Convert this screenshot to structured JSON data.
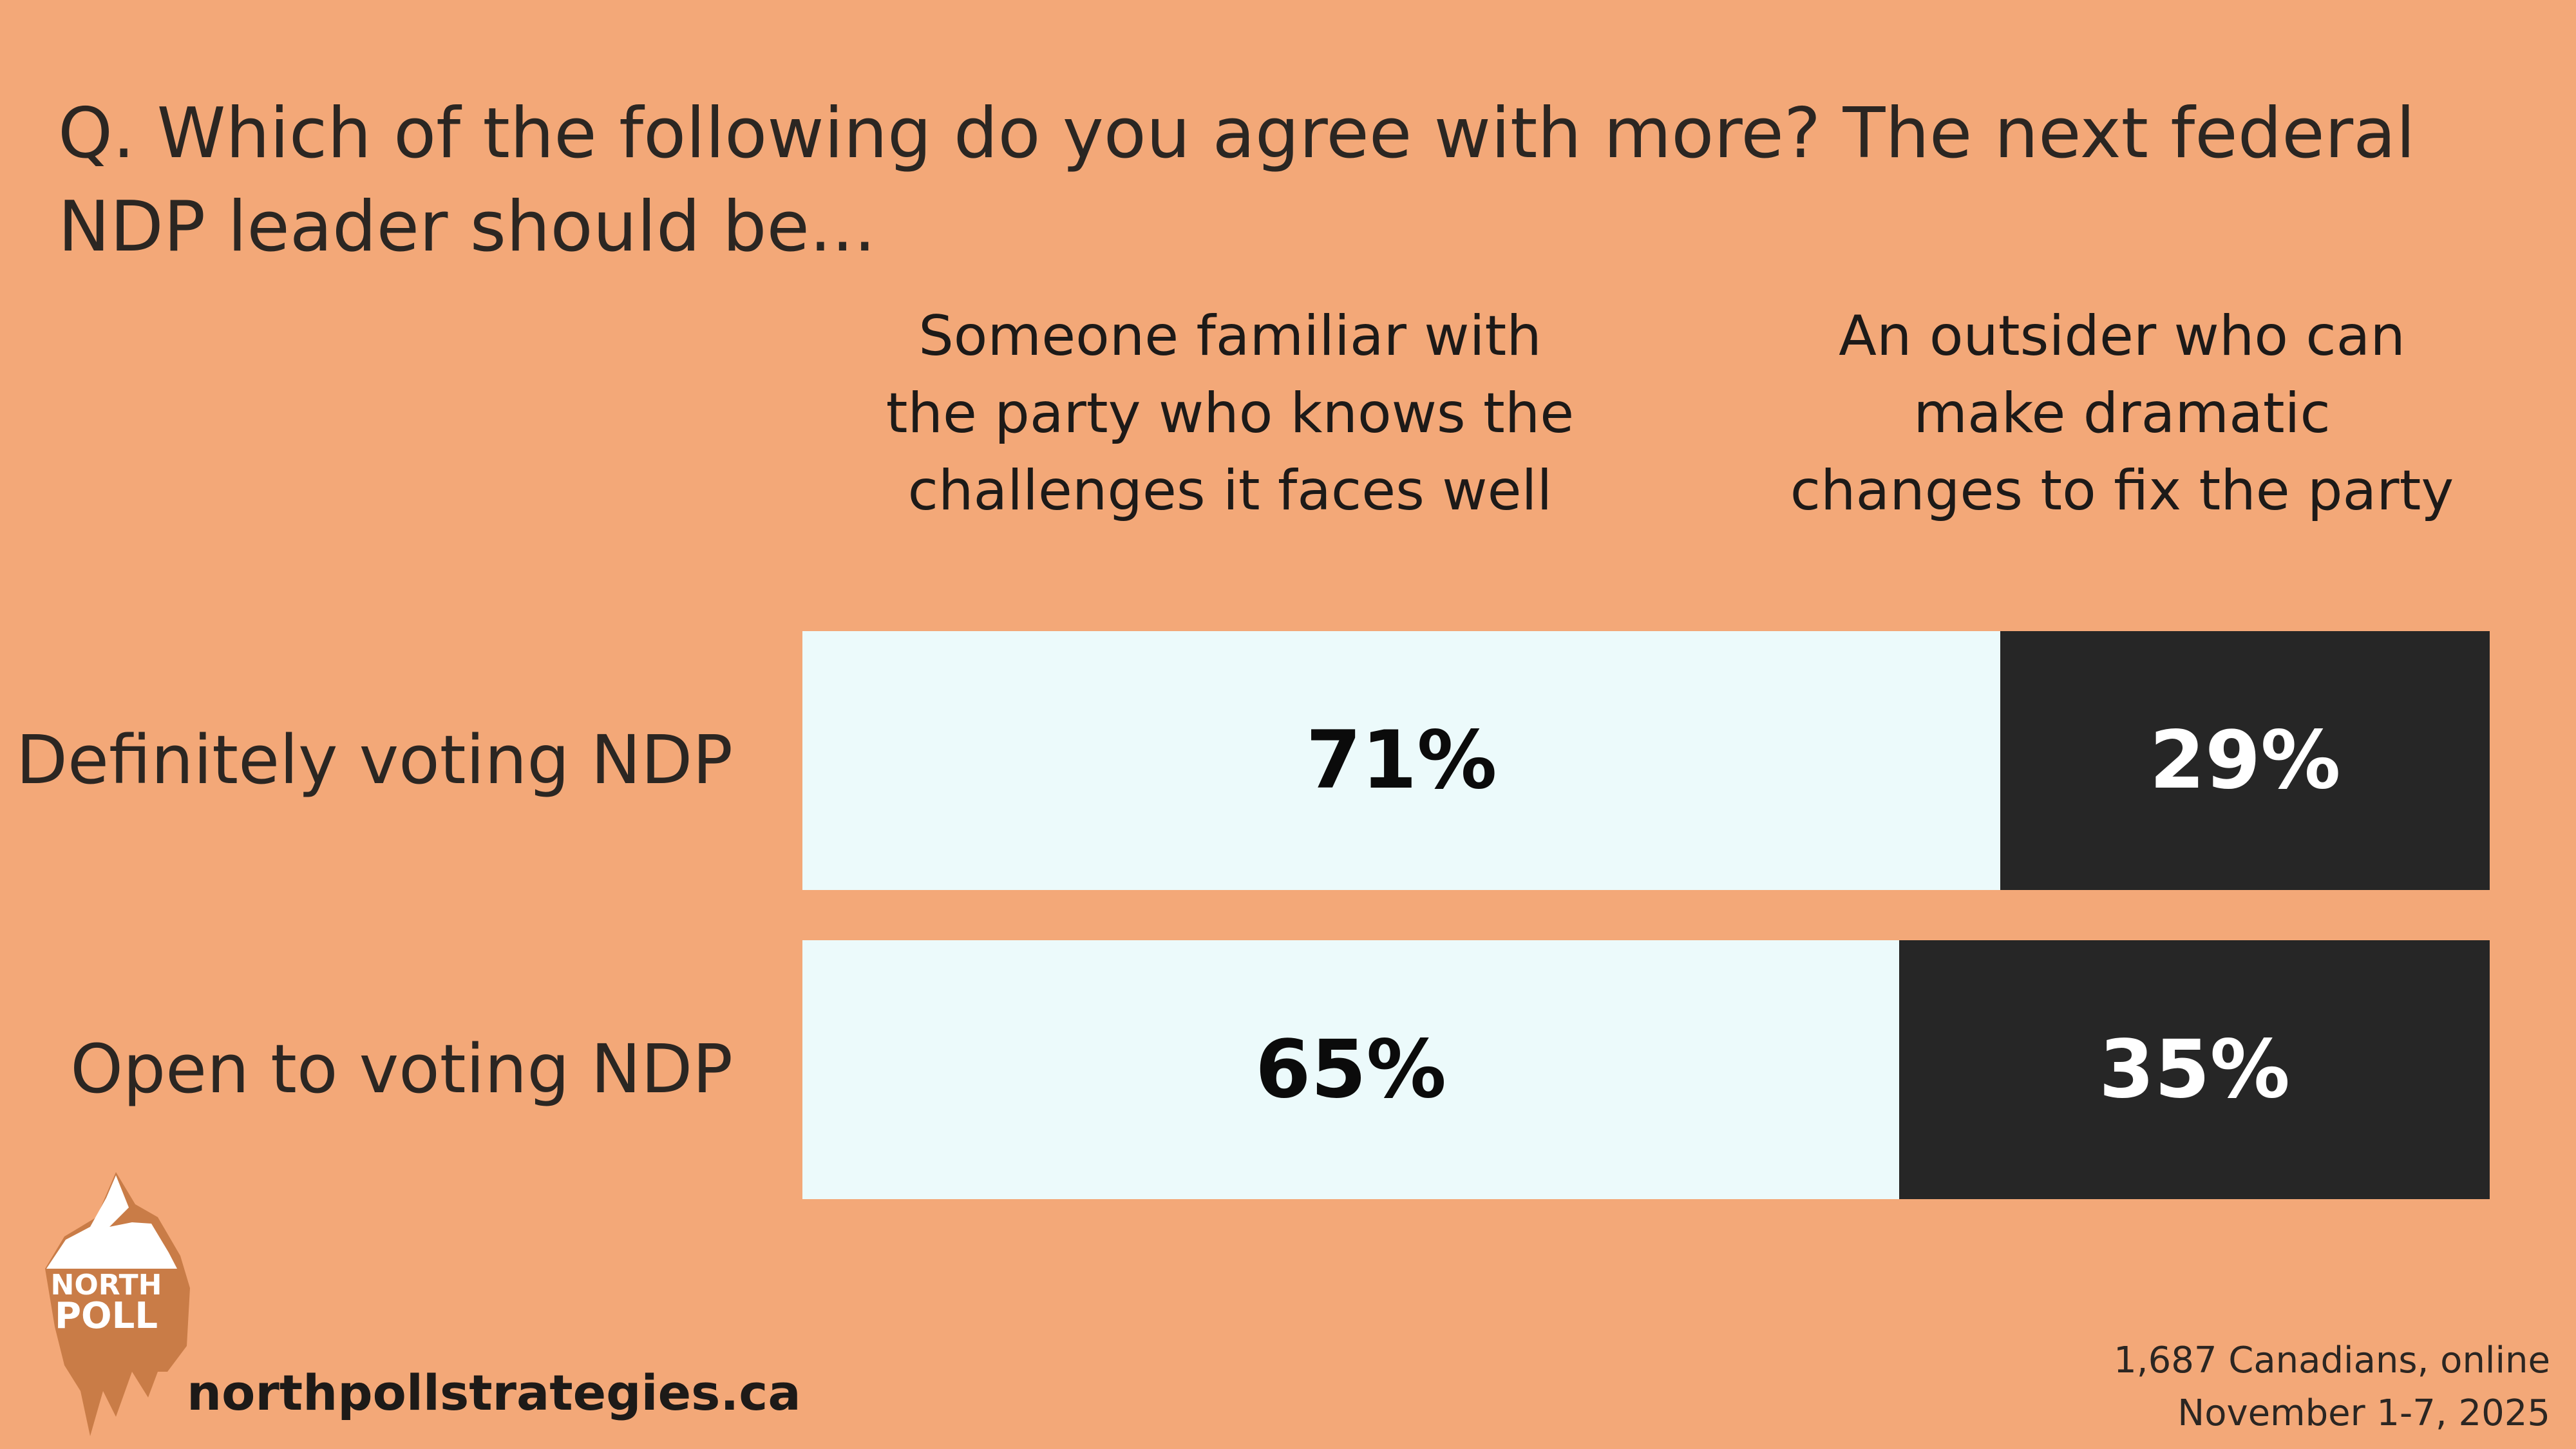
{
  "question": "Q. Which of the following do you agree with more? The next federal NDP leader should be...",
  "columns": {
    "left": [
      "Someone familiar with",
      "the party who knows the",
      "challenges it faces well"
    ],
    "right": [
      "An outsider who can",
      "make dramatic",
      "changes to fix the party"
    ]
  },
  "colors": {
    "background": "#F3A878",
    "familiar": "#ECFAFB",
    "outsider": "#262626"
  },
  "chart_data": {
    "type": "bar",
    "orientation": "horizontal",
    "stacked": "100%",
    "categories": [
      "Definitely voting NDP",
      "Open to voting NDP"
    ],
    "series": [
      {
        "name": "Someone familiar with the party who knows the challenges it faces well",
        "values": [
          71,
          65
        ],
        "labels": [
          "71%",
          "65%"
        ]
      },
      {
        "name": "An outsider who can make dramatic changes to fix the party",
        "values": [
          29,
          35
        ],
        "labels": [
          "29%",
          "35%"
        ]
      }
    ],
    "title": "Q. Which of the following do you agree with more? The next federal NDP leader should be...",
    "xlim": [
      0,
      100
    ]
  },
  "logo": {
    "line1": "NORTH",
    "line2": "POLL"
  },
  "website": "northpollstrategies.ca",
  "sample": {
    "line1": "1,687 Canadians, online",
    "line2": "November 1-7, 2025"
  }
}
